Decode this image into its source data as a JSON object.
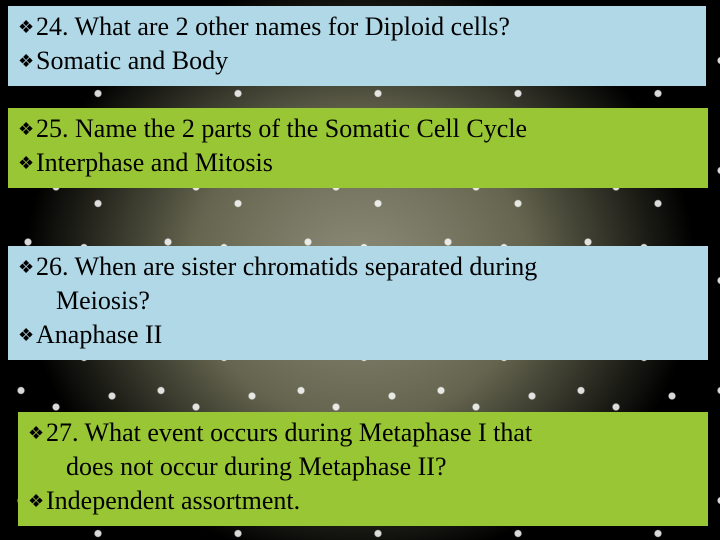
{
  "slide": {
    "background_color": "#000000",
    "highlight_yellow": "#f4f6b8",
    "bullet_glyph": "❖",
    "font_family": "Times New Roman",
    "font_size_pt": 20,
    "boxes": [
      {
        "bg_color": "#b1d8e7",
        "lines": [
          {
            "text": "24. What are 2 other names for Diploid cells?"
          },
          {
            "text": "Somatic and Body"
          }
        ]
      },
      {
        "bg_color": "#99c635",
        "lines": [
          {
            "text": "25. Name the 2 parts of the Somatic Cell Cycle"
          },
          {
            "text": "Interphase and Mitosis"
          }
        ]
      },
      {
        "bg_color": "#b1d8e7",
        "lines": [
          {
            "text": "26. When are sister chromatids separated during Meiosis?"
          },
          {
            "text": "Anaphase II"
          }
        ]
      },
      {
        "bg_color": "#99c635",
        "lines": [
          {
            "text": "27. What event occurs during Metaphase I that does not occur during Metaphase II?"
          },
          {
            "text": "Independent assortment."
          }
        ]
      }
    ]
  }
}
